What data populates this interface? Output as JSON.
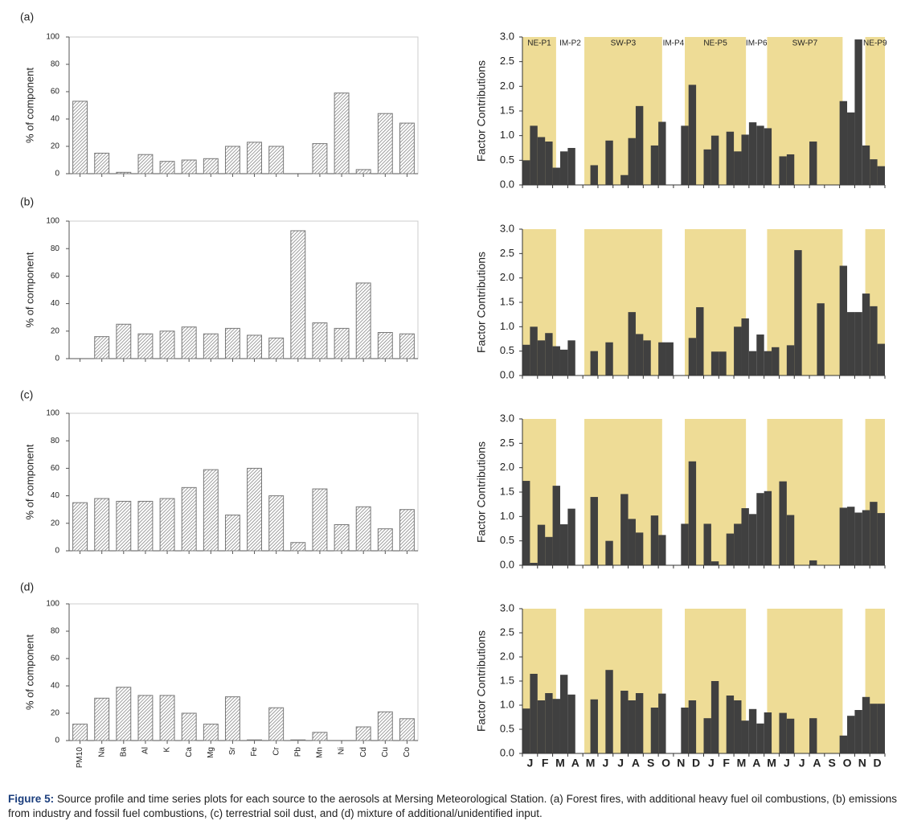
{
  "chart_data": [
    {
      "type": "bar",
      "label": "(a)",
      "ylabel": "% of component",
      "ylim": [
        0,
        100
      ],
      "yticks": [
        0,
        20,
        40,
        60,
        80,
        100
      ],
      "color": "#777777",
      "values": [
        53,
        15,
        1,
        14,
        9,
        10,
        11,
        20,
        23,
        20,
        null,
        22,
        59,
        3,
        44,
        37
      ]
    },
    {
      "type": "bar",
      "ylabel": "Factor Contributions",
      "ylim": [
        0,
        3
      ],
      "yticks": [
        {
          "value": 0,
          "label": "0.0"
        },
        {
          "value": 0.5,
          "label": "0.5"
        },
        {
          "value": 1,
          "label": "1.0"
        },
        {
          "value": 1.5,
          "label": "1.5"
        },
        {
          "value": 2,
          "label": "2.0"
        },
        {
          "value": 2.5,
          "label": "2.5"
        },
        {
          "value": 3,
          "label": "3.0"
        }
      ],
      "xlim": [
        0,
        24
      ],
      "color": "#404040",
      "band_color": "#eedc96",
      "bands": [
        {
          "label": "NE-P1",
          "start": 0,
          "end": 2.23
        },
        {
          "label": "IM-P2",
          "start": 2.23,
          "end": 4.1,
          "white": true
        },
        {
          "label": "SW-P3",
          "start": 4.1,
          "end": 9.25
        },
        {
          "label": "IM-P4",
          "start": 9.25,
          "end": 10.75,
          "white": true
        },
        {
          "label": "NE-P5",
          "start": 10.75,
          "end": 14.8
        },
        {
          "label": "IM-P6",
          "start": 14.8,
          "end": 16.2,
          "white": true
        },
        {
          "label": "SW-P7",
          "start": 16.2,
          "end": 21.2
        },
        {
          "start": 21.2,
          "end": 22.7,
          "white": true
        },
        {
          "label": "NE-P9",
          "start": 22.7,
          "end": 24
        }
      ],
      "values": [
        0.5,
        1.2,
        0.97,
        0.88,
        0.35,
        0.68,
        0.75,
        null,
        null,
        0.4,
        null,
        0.9,
        null,
        0.2,
        0.95,
        1.6,
        null,
        0.8,
        1.28,
        null,
        null,
        1.2,
        2.03,
        null,
        0.72,
        1.0,
        null,
        1.08,
        0.68,
        1.02,
        1.27,
        1.2,
        1.15,
        null,
        0.58,
        0.62,
        null,
        null,
        0.88,
        null,
        null,
        null,
        1.7,
        1.47,
        2.95,
        0.8,
        0.52,
        0.38
      ]
    },
    {
      "type": "bar",
      "label": "(b)",
      "ylabel": "% of component",
      "ylim": [
        0,
        100
      ],
      "yticks": [
        0,
        20,
        40,
        60,
        80,
        100
      ],
      "color": "#777777",
      "values": [
        null,
        16,
        25,
        18,
        20,
        23,
        18,
        22,
        17,
        15,
        93,
        26,
        22,
        55,
        19,
        18
      ]
    },
    {
      "type": "bar",
      "ylabel": "Factor Contributions",
      "ylim": [
        0,
        3
      ],
      "yticks": [
        {
          "value": 0,
          "label": "0.0"
        },
        {
          "value": 0.5,
          "label": "0.5"
        },
        {
          "value": 1,
          "label": "1.0"
        },
        {
          "value": 1.5,
          "label": "1.5"
        },
        {
          "value": 2,
          "label": "2.0"
        },
        {
          "value": 2.5,
          "label": "2.5"
        },
        {
          "value": 3,
          "label": "3.0"
        }
      ],
      "xlim": [
        0,
        24
      ],
      "color": "#404040",
      "band_color": "#eedc96",
      "bands": [
        {
          "start": 0,
          "end": 2.23
        },
        {
          "start": 4.1,
          "end": 9.25
        },
        {
          "start": 10.75,
          "end": 14.8
        },
        {
          "start": 16.2,
          "end": 21.2
        },
        {
          "start": 22.7,
          "end": 24
        }
      ],
      "values": [
        0.63,
        1.0,
        0.72,
        0.87,
        0.6,
        0.53,
        0.72,
        null,
        null,
        0.5,
        null,
        0.68,
        null,
        null,
        1.3,
        0.85,
        0.72,
        null,
        0.68,
        0.68,
        null,
        null,
        0.77,
        1.4,
        null,
        0.49,
        0.49,
        null,
        1.0,
        1.17,
        0.5,
        0.84,
        0.5,
        0.58,
        null,
        0.62,
        2.57,
        null,
        null,
        1.48,
        null,
        null,
        2.25,
        1.3,
        1.3,
        1.68,
        1.42,
        0.65
      ]
    },
    {
      "type": "bar",
      "label": "(c)",
      "ylabel": "% of component",
      "ylim": [
        0,
        100
      ],
      "yticks": [
        0,
        20,
        40,
        60,
        80,
        100
      ],
      "color": "#777777",
      "values": [
        35,
        38,
        36,
        36,
        38,
        46,
        59,
        26,
        60,
        40,
        6,
        45,
        19,
        32,
        16,
        30
      ]
    },
    {
      "type": "bar",
      "ylabel": "Factor Contributions",
      "ylim": [
        0,
        3
      ],
      "yticks": [
        {
          "value": 0,
          "label": "0.0"
        },
        {
          "value": 0.5,
          "label": "0.5"
        },
        {
          "value": 1,
          "label": "1.0"
        },
        {
          "value": 1.5,
          "label": "1.5"
        },
        {
          "value": 2,
          "label": "2.0"
        },
        {
          "value": 2.5,
          "label": "2.5"
        },
        {
          "value": 3,
          "label": "3.0"
        }
      ],
      "xlim": [
        0,
        24
      ],
      "color": "#404040",
      "band_color": "#eedc96",
      "bands": [
        {
          "start": 0,
          "end": 2.23
        },
        {
          "start": 4.1,
          "end": 9.25
        },
        {
          "start": 10.75,
          "end": 14.8
        },
        {
          "start": 16.2,
          "end": 21.2
        },
        {
          "start": 22.7,
          "end": 24
        }
      ],
      "values": [
        1.73,
        0.05,
        0.83,
        0.58,
        1.63,
        0.84,
        1.16,
        null,
        null,
        1.4,
        null,
        0.5,
        null,
        1.46,
        0.95,
        0.67,
        null,
        1.02,
        0.62,
        null,
        null,
        0.85,
        2.13,
        null,
        0.85,
        0.08,
        null,
        0.65,
        0.85,
        1.17,
        1.05,
        1.48,
        1.52,
        null,
        1.72,
        1.03,
        null,
        null,
        0.1,
        null,
        null,
        null,
        1.18,
        1.2,
        1.08,
        1.13,
        1.3,
        1.07
      ]
    },
    {
      "type": "bar",
      "label": "(d)",
      "ylabel": "% of component",
      "ylim": [
        0,
        100
      ],
      "yticks": [
        0,
        20,
        40,
        60,
        80,
        100
      ],
      "color": "#777777",
      "categories": [
        "PM10",
        "Na",
        "Ba",
        "Al",
        "K",
        "Ca",
        "Mg",
        "Sr",
        "Fe",
        "Cr",
        "Pb",
        "Mn",
        "Ni",
        "Cd",
        "Cu",
        "Co"
      ],
      "values": [
        12,
        31,
        39,
        33,
        33,
        20,
        12,
        32,
        0.5,
        24,
        0.5,
        6,
        null,
        10,
        21,
        16
      ]
    },
    {
      "type": "bar",
      "ylabel": "Factor Contributions",
      "ylim": [
        0,
        3
      ],
      "yticks": [
        {
          "value": 0,
          "label": "0.0"
        },
        {
          "value": 0.5,
          "label": "0.5"
        },
        {
          "value": 1,
          "label": "1.0"
        },
        {
          "value": 1.5,
          "label": "1.5"
        },
        {
          "value": 2,
          "label": "2.0"
        },
        {
          "value": 2.5,
          "label": "2.5"
        },
        {
          "value": 3,
          "label": "3.0"
        }
      ],
      "xlim": [
        0,
        24
      ],
      "color": "#404040",
      "band_color": "#eedc96",
      "bands": [
        {
          "start": 0,
          "end": 2.23
        },
        {
          "start": 4.1,
          "end": 9.25
        },
        {
          "start": 10.75,
          "end": 14.8
        },
        {
          "start": 16.2,
          "end": 21.2
        },
        {
          "start": 22.7,
          "end": 24
        }
      ],
      "xticks": [
        {
          "value": 0.5,
          "label": "J"
        },
        {
          "value": 1.5,
          "label": "F"
        },
        {
          "value": 2.5,
          "label": "M"
        },
        {
          "value": 3.5,
          "label": "A"
        },
        {
          "value": 4.5,
          "label": "M"
        },
        {
          "value": 5.5,
          "label": "J"
        },
        {
          "value": 6.5,
          "label": "J"
        },
        {
          "value": 7.5,
          "label": "A"
        },
        {
          "value": 8.5,
          "label": "S"
        },
        {
          "value": 9.5,
          "label": "O"
        },
        {
          "value": 10.5,
          "label": "N"
        },
        {
          "value": 11.5,
          "label": "D"
        },
        {
          "value": 12.5,
          "label": "J"
        },
        {
          "value": 13.5,
          "label": "F"
        },
        {
          "value": 14.5,
          "label": "M"
        },
        {
          "value": 15.5,
          "label": "A"
        },
        {
          "value": 16.5,
          "label": "M"
        },
        {
          "value": 17.5,
          "label": "J"
        },
        {
          "value": 18.5,
          "label": "J"
        },
        {
          "value": 19.5,
          "label": "A"
        },
        {
          "value": 20.5,
          "label": "S"
        },
        {
          "value": 21.5,
          "label": "O"
        },
        {
          "value": 22.5,
          "label": "N"
        },
        {
          "value": 23.5,
          "label": "D"
        }
      ],
      "values": [
        0.93,
        1.65,
        1.1,
        1.25,
        1.13,
        1.63,
        1.22,
        null,
        null,
        1.12,
        null,
        1.73,
        null,
        1.3,
        1.1,
        1.25,
        null,
        0.95,
        1.24,
        null,
        null,
        0.95,
        1.1,
        null,
        0.73,
        1.5,
        null,
        1.2,
        1.1,
        0.68,
        0.92,
        0.62,
        0.85,
        null,
        0.84,
        0.72,
        null,
        null,
        0.73,
        null,
        null,
        null,
        0.37,
        0.78,
        0.9,
        1.17,
        1.03,
        1.03
      ]
    }
  ],
  "caption": {
    "label": "Figure 5:",
    "text": "Source profile and time series plots for each source to the aerosols at Mersing Meteorological Station. (a) Forest fires, with additional heavy fuel oil combustions, (b) emissions from industry and fossil fuel combustions, (c) terrestrial soil dust, and (d) mixture of additional/unidentified input."
  }
}
